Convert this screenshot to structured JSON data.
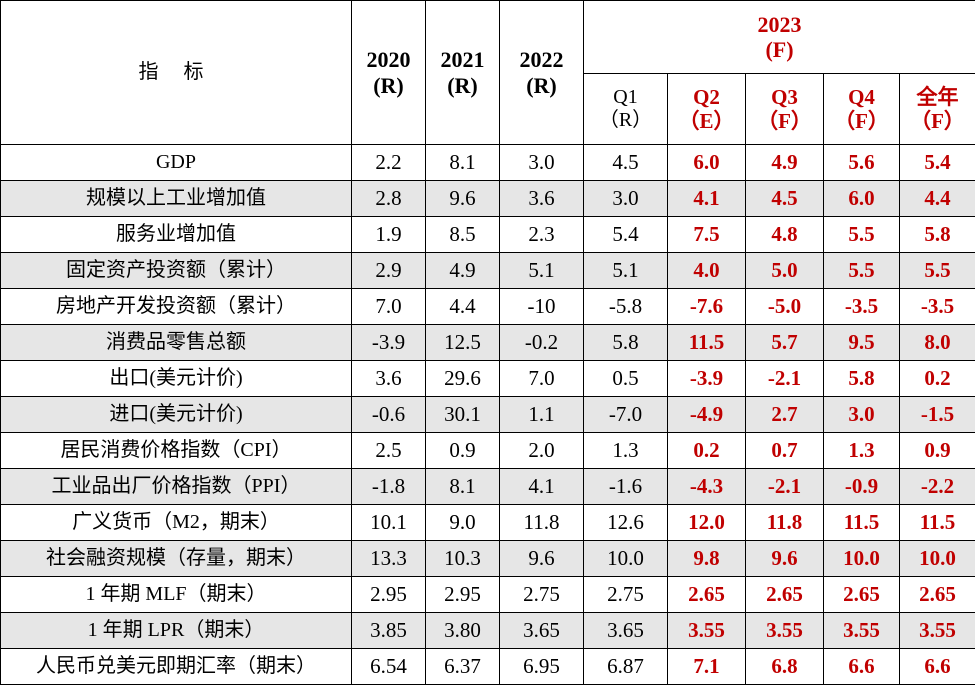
{
  "header": {
    "indicator": "指 标",
    "years": [
      {
        "year": "2020",
        "tag": "(R)"
      },
      {
        "year": "2021",
        "tag": "(R)"
      },
      {
        "year": "2022",
        "tag": "(R)"
      }
    ],
    "group_year": "2023",
    "group_tag": "(F)",
    "quarters": [
      {
        "q": "Q1",
        "tag": "（R）"
      },
      {
        "q": "Q2",
        "tag": "（E）"
      },
      {
        "q": "Q3",
        "tag": "（F）"
      },
      {
        "q": "Q4",
        "tag": "（F）"
      },
      {
        "q": "全年",
        "tag": "（F）"
      }
    ]
  },
  "rows": [
    {
      "name": "GDP",
      "values": [
        "2.2",
        "8.1",
        "3.0",
        "4.5",
        "6.0",
        "4.9",
        "5.6",
        "5.4"
      ]
    },
    {
      "name": "规模以上工业增加值",
      "values": [
        "2.8",
        "9.6",
        "3.6",
        "3.0",
        "4.1",
        "4.5",
        "6.0",
        "4.4"
      ]
    },
    {
      "name": "服务业增加值",
      "values": [
        "1.9",
        "8.5",
        "2.3",
        "5.4",
        "7.5",
        "4.8",
        "5.5",
        "5.8"
      ]
    },
    {
      "name": "固定资产投资额（累计）",
      "values": [
        "2.9",
        "4.9",
        "5.1",
        "5.1",
        "4.0",
        "5.0",
        "5.5",
        "5.5"
      ]
    },
    {
      "name": "房地产开发投资额（累计）",
      "values": [
        "7.0",
        "4.4",
        "-10",
        "-5.8",
        "-7.6",
        "-5.0",
        "-3.5",
        "-3.5"
      ]
    },
    {
      "name": "消费品零售总额",
      "values": [
        "-3.9",
        "12.5",
        "-0.2",
        "5.8",
        "11.5",
        "5.7",
        "9.5",
        "8.0"
      ]
    },
    {
      "name": "出口(美元计价)",
      "values": [
        "3.6",
        "29.6",
        "7.0",
        "0.5",
        "-3.9",
        "-2.1",
        "5.8",
        "0.2"
      ]
    },
    {
      "name": "进口(美元计价)",
      "values": [
        "-0.6",
        "30.1",
        "1.1",
        "-7.0",
        "-4.9",
        "2.7",
        "3.0",
        "-1.5"
      ]
    },
    {
      "name": "居民消费价格指数（CPI）",
      "values": [
        "2.5",
        "0.9",
        "2.0",
        "1.3",
        "0.2",
        "0.7",
        "1.3",
        "0.9"
      ]
    },
    {
      "name": "工业品出厂价格指数（PPI）",
      "values": [
        "-1.8",
        "8.1",
        "4.1",
        "-1.6",
        "-4.3",
        "-2.1",
        "-0.9",
        "-2.2"
      ]
    },
    {
      "name": "广义货币（M2，期末）",
      "values": [
        "10.1",
        "9.0",
        "11.8",
        "12.6",
        "12.0",
        "11.8",
        "11.5",
        "11.5"
      ]
    },
    {
      "name": "社会融资规模（存量，期末）",
      "values": [
        "13.3",
        "10.3",
        "9.6",
        "10.0",
        "9.8",
        "9.6",
        "10.0",
        "10.0"
      ]
    },
    {
      "name": "1 年期 MLF（期末）",
      "values": [
        "2.95",
        "2.95",
        "2.75",
        "2.75",
        "2.65",
        "2.65",
        "2.65",
        "2.65"
      ]
    },
    {
      "name": "1 年期 LPR（期末）",
      "values": [
        "3.85",
        "3.80",
        "3.65",
        "3.65",
        "3.55",
        "3.55",
        "3.55",
        "3.55"
      ]
    },
    {
      "name": "人民币兑美元即期汇率（期末）",
      "values": [
        "6.54",
        "6.37",
        "6.95",
        "6.87",
        "7.1",
        "6.8",
        "6.6",
        "6.6"
      ]
    }
  ],
  "colors": {
    "forecast_red": "#c00000",
    "shade": "#e6e6e6"
  }
}
